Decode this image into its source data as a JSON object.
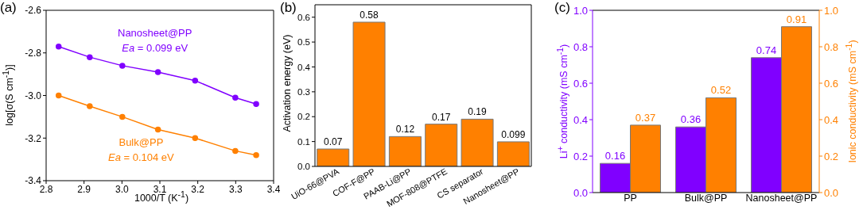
{
  "chart_data": [
    {
      "type": "line",
      "title": "(a)",
      "xlabel": "1000/T (K$^{-1}$)",
      "ylabel": "log[σ(S cm$^{-1}$)]",
      "x": [
        2.833,
        2.915,
        3.001,
        3.095,
        3.193,
        3.299,
        3.354
      ],
      "series": [
        {
          "name": "Nanosheet@PP",
          "color": "#8000ff",
          "values": [
            -2.77,
            -2.82,
            -2.86,
            -2.89,
            -2.93,
            -3.01,
            -3.04
          ]
        },
        {
          "name": "Bulk@PP",
          "color": "#ff8000",
          "values": [
            -3.0,
            -3.05,
            -3.1,
            -3.16,
            -3.2,
            -3.26,
            -3.28
          ]
        }
      ],
      "annotations": [
        "Ea = 0.099 eV",
        "Ea = 0.104 eV"
      ],
      "xlim": [
        2.8,
        3.4
      ],
      "xticks": [
        2.8,
        2.9,
        {
          "value": 3,
          "label": "3.0"
        },
        3.1,
        3.2,
        3.3,
        3.4
      ],
      "ylim": [
        -3.4,
        -2.6
      ],
      "yticks": [
        -3.4,
        -3.2,
        {
          "value": -3,
          "label": "-3.0"
        },
        -2.8,
        -2.6
      ],
      "marker": "circle",
      "line_style": "solid"
    },
    {
      "type": "bar",
      "title": "(b)",
      "ylabel": "Activation energy (eV)",
      "categories": [
        "UiO-66@PVA",
        "COF-F@PP",
        "PAAB-Li@PP",
        "MOF-808@PTFE",
        "CS separator",
        "Nanosheet@PP"
      ],
      "values": [
        0.07,
        0.58,
        0.12,
        0.17,
        0.19,
        0.099
      ],
      "color": "#ff8000",
      "data_labels": true,
      "ylim": [
        0,
        0.65
      ],
      "yticks": [
        {
          "value": 0,
          "label": "0.0"
        },
        0.1,
        0.2,
        0.3,
        0.4,
        0.5,
        0.6
      ]
    },
    {
      "type": "bar",
      "title": "(c)",
      "ylabel": "Li$^{+}$ conductivity (mS cm$^{-1}$)",
      "y2label": "Ionic conductivity (mS cm$^{-1}$)",
      "categories": [
        "PP",
        "Bulk@PP",
        "Nanosheet@PP"
      ],
      "series": [
        {
          "color": "#8000ff",
          "values": [
            0.16,
            0.36,
            0.74
          ]
        },
        {
          "color": "#ff8000",
          "values": [
            0.37,
            0.52,
            0.91
          ],
          "axis": "y2"
        }
      ],
      "data_labels": true,
      "ylim": [
        0,
        1
      ],
      "yticks": [
        {
          "value": 0,
          "label": "0.0"
        },
        0.2,
        0.4,
        0.6,
        0.8,
        {
          "value": 1,
          "label": "1.0"
        }
      ],
      "y2lim": [
        0,
        1
      ],
      "y2ticks": [
        {
          "value": 0,
          "label": "0.0"
        },
        0.2,
        0.4,
        0.6,
        0.8,
        {
          "value": 1,
          "label": "1.0"
        }
      ]
    }
  ]
}
